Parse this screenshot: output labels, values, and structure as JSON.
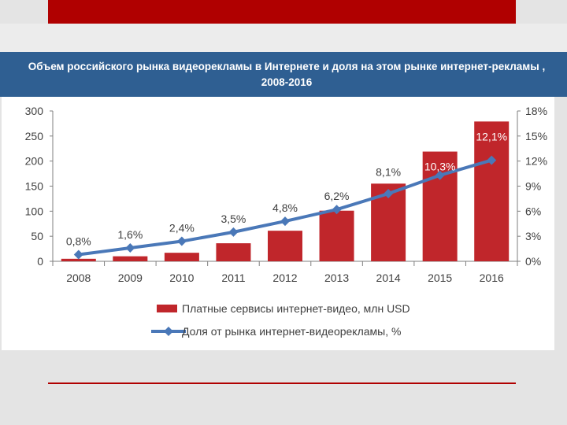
{
  "slide": {
    "title": "Объем российского рынка видеорекламы в Интернете и доля на этом рынке интернет-рекламы , 2008-2016"
  },
  "colors": {
    "bar": "#c0262b",
    "line": "#4a78b8",
    "title_band": "#2f5f92",
    "accent_red": "#b00000"
  },
  "chart_data": {
    "type": "bar",
    "categories": [
      "2008",
      "2009",
      "2010",
      "2011",
      "2012",
      "2013",
      "2014",
      "2015",
      "2016"
    ],
    "series": [
      {
        "name": "Платные сервисы интернет-видео, млн USD",
        "type": "bar",
        "axis": "left",
        "values": [
          5,
          10,
          17,
          36,
          61,
          101,
          155,
          219,
          279
        ]
      },
      {
        "name": "Доля от рынка интернет-видеорекламы, %",
        "type": "line",
        "axis": "right",
        "values": [
          0.8,
          1.6,
          2.4,
          3.5,
          4.8,
          6.2,
          8.1,
          10.3,
          12.1
        ],
        "labels": [
          "0,8%",
          "1,6%",
          "2,4%",
          "3,5%",
          "4,8%",
          "6,2%",
          "8,1%",
          "10,3%",
          "12,1%"
        ]
      }
    ],
    "y_left": {
      "ylim": [
        0,
        300
      ],
      "ticks": [
        "0",
        "50",
        "100",
        "150",
        "200",
        "250",
        "300"
      ]
    },
    "y_right": {
      "ylim": [
        0,
        18
      ],
      "ticks": [
        "0%",
        "3%",
        "6%",
        "9%",
        "12%",
        "15%",
        "18%"
      ]
    },
    "grid": false,
    "legend_position": "bottom"
  }
}
